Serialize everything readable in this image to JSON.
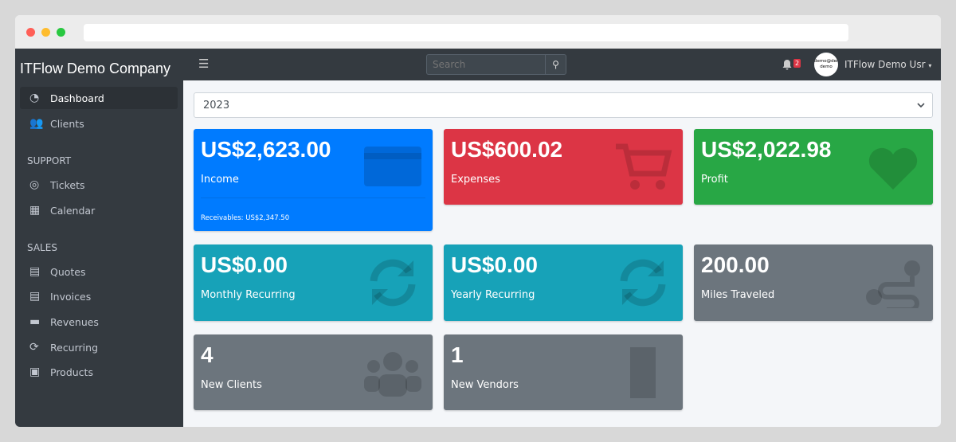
{
  "sidebar": {
    "brand": "ITFlow Demo Company",
    "items": [
      {
        "label": "Dashboard"
      },
      {
        "label": "Clients"
      }
    ],
    "support_header": "SUPPORT",
    "support": [
      {
        "label": "Tickets"
      },
      {
        "label": "Calendar"
      }
    ],
    "sales_header": "SALES",
    "sales": [
      {
        "label": "Quotes"
      },
      {
        "label": "Invoices"
      },
      {
        "label": "Revenues"
      },
      {
        "label": "Recurring"
      },
      {
        "label": "Products"
      }
    ]
  },
  "navbar": {
    "search_placeholder": "Search",
    "notifications": "2",
    "avatar_text": "demo@demo demo",
    "user": "ITFlow Demo Usr"
  },
  "year_select": "2023",
  "cards": [
    {
      "value": "US$2,623.00",
      "label": "Income",
      "footer": "Receivables: US$2,347.50",
      "color": "#007bff",
      "icon": "credit-card-icon"
    },
    {
      "value": "US$600.02",
      "label": "Expenses",
      "color": "#dc3545",
      "icon": "shopping-cart-icon"
    },
    {
      "value": "US$2,022.98",
      "label": "Profit",
      "color": "#28a745",
      "icon": "heart-icon"
    },
    {
      "value": "US$0.00",
      "label": "Monthly Recurring",
      "color": "#17a2b8",
      "icon": "sync-icon"
    },
    {
      "value": "US$0.00",
      "label": "Yearly Recurring",
      "color": "#17a2b8",
      "icon": "sync-icon"
    },
    {
      "value": "200.00",
      "label": "Miles Traveled",
      "color": "#6c757d",
      "icon": "route-icon"
    },
    {
      "value": "4",
      "label": "New Clients",
      "color": "#6c757d",
      "icon": "users-icon"
    },
    {
      "value": "1",
      "label": "New Vendors",
      "color": "#6c757d",
      "icon": "building-icon"
    }
  ]
}
